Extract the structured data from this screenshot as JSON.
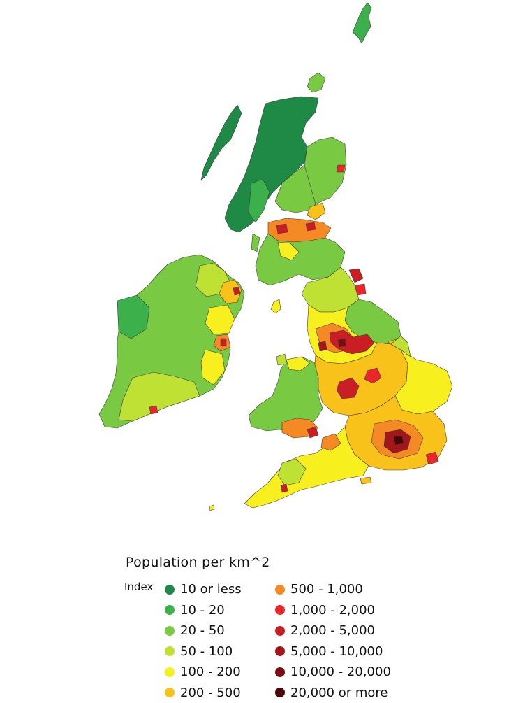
{
  "legend": {
    "title": "Population  per km^2",
    "index_label": "Index",
    "classes": [
      {
        "label": "10 or less",
        "color": "#1f8a45"
      },
      {
        "label": "10 - 20",
        "color": "#3cb14b"
      },
      {
        "label": "20 - 50",
        "color": "#7ac943"
      },
      {
        "label": "50 - 100",
        "color": "#bfe134"
      },
      {
        "label": "100 - 200",
        "color": "#f7ef1e"
      },
      {
        "label": "200 - 500",
        "color": "#f8c21a"
      },
      {
        "label": "500 - 1,000",
        "color": "#f58a25"
      },
      {
        "label": "1,000 - 2,000",
        "color": "#e8262b"
      },
      {
        "label": "2,000 - 5,000",
        "color": "#c81e24"
      },
      {
        "label": "5,000 - 10,000",
        "color": "#a3161a"
      },
      {
        "label": "10,000 - 20,000",
        "color": "#7a0d0f"
      },
      {
        "label": "20,000 or more",
        "color": "#4a0507"
      }
    ]
  }
}
